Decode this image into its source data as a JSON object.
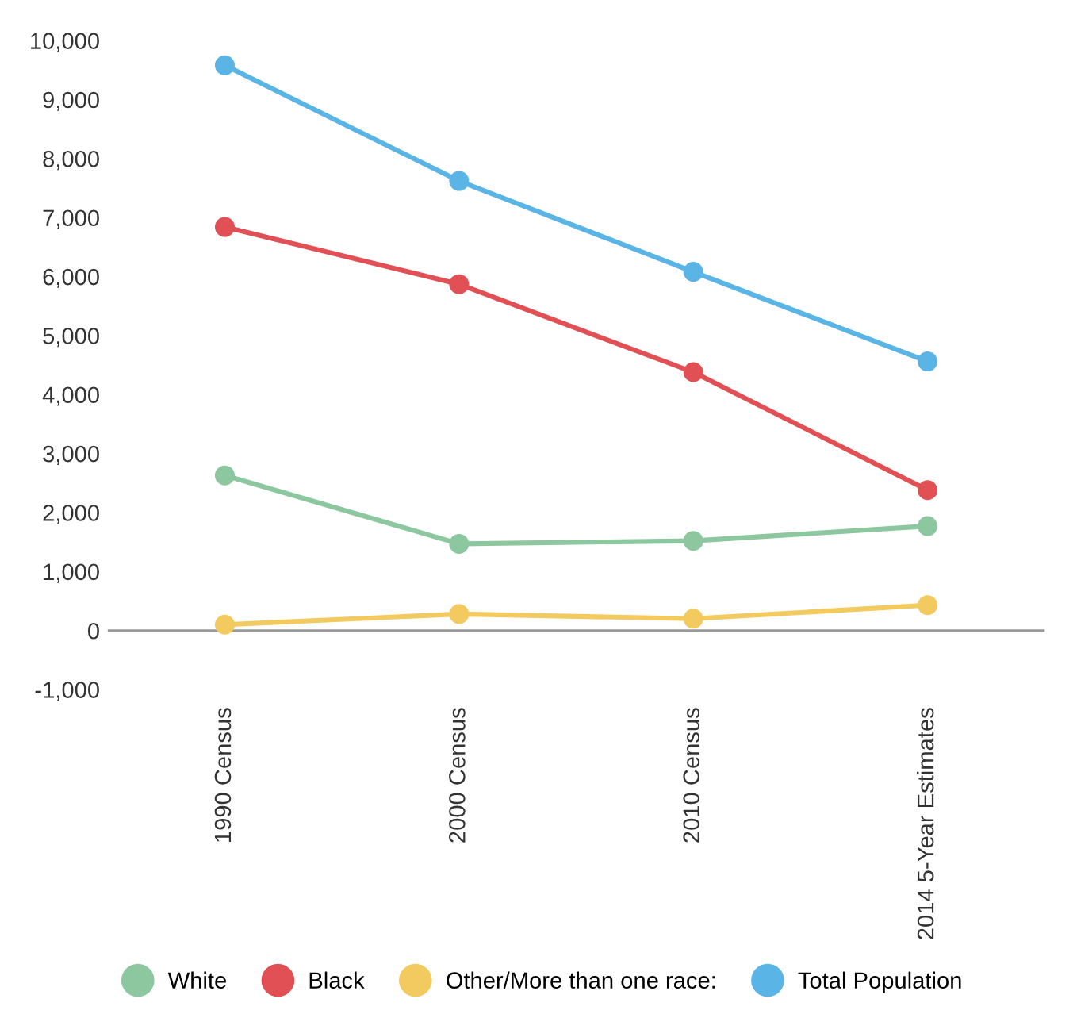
{
  "chart_data": {
    "type": "line",
    "categories": [
      "1990 Census",
      "2000 Census",
      "2010 Census",
      "2014 5-Year Estimates"
    ],
    "series": [
      {
        "name": "White",
        "color": "#8cc7a0",
        "values": [
          2630,
          1470,
          1520,
          1770
        ]
      },
      {
        "name": "Black",
        "color": "#e05055",
        "values": [
          6840,
          5870,
          4380,
          2380
        ]
      },
      {
        "name": "Other/More than one race:",
        "color": "#f2ca5f",
        "values": [
          100,
          280,
          200,
          430
        ]
      },
      {
        "name": "Total Population",
        "color": "#5ab4e5",
        "values": [
          9580,
          7620,
          6080,
          4560
        ]
      }
    ],
    "ylim": [
      -1000,
      10000
    ],
    "yticks": [
      {
        "value": -1000,
        "label": "-1,000"
      },
      0,
      {
        "value": 1000,
        "label": "1,000"
      },
      {
        "value": 2000,
        "label": "2,000"
      },
      {
        "value": 3000,
        "label": "3,000"
      },
      {
        "value": 4000,
        "label": "4,000"
      },
      {
        "value": 5000,
        "label": "5,000"
      },
      {
        "value": 6000,
        "label": "6,000"
      },
      {
        "value": 7000,
        "label": "7,000"
      },
      {
        "value": 8000,
        "label": "8,000"
      },
      {
        "value": 9000,
        "label": "9,000"
      },
      {
        "value": 10000,
        "label": "10,000"
      }
    ],
    "ref_lines": [
      {
        "axis": "y",
        "value": 0,
        "color": "#999999"
      }
    ],
    "grid": false,
    "legend": "bottom",
    "marker": "circle",
    "line_style": "solid"
  }
}
